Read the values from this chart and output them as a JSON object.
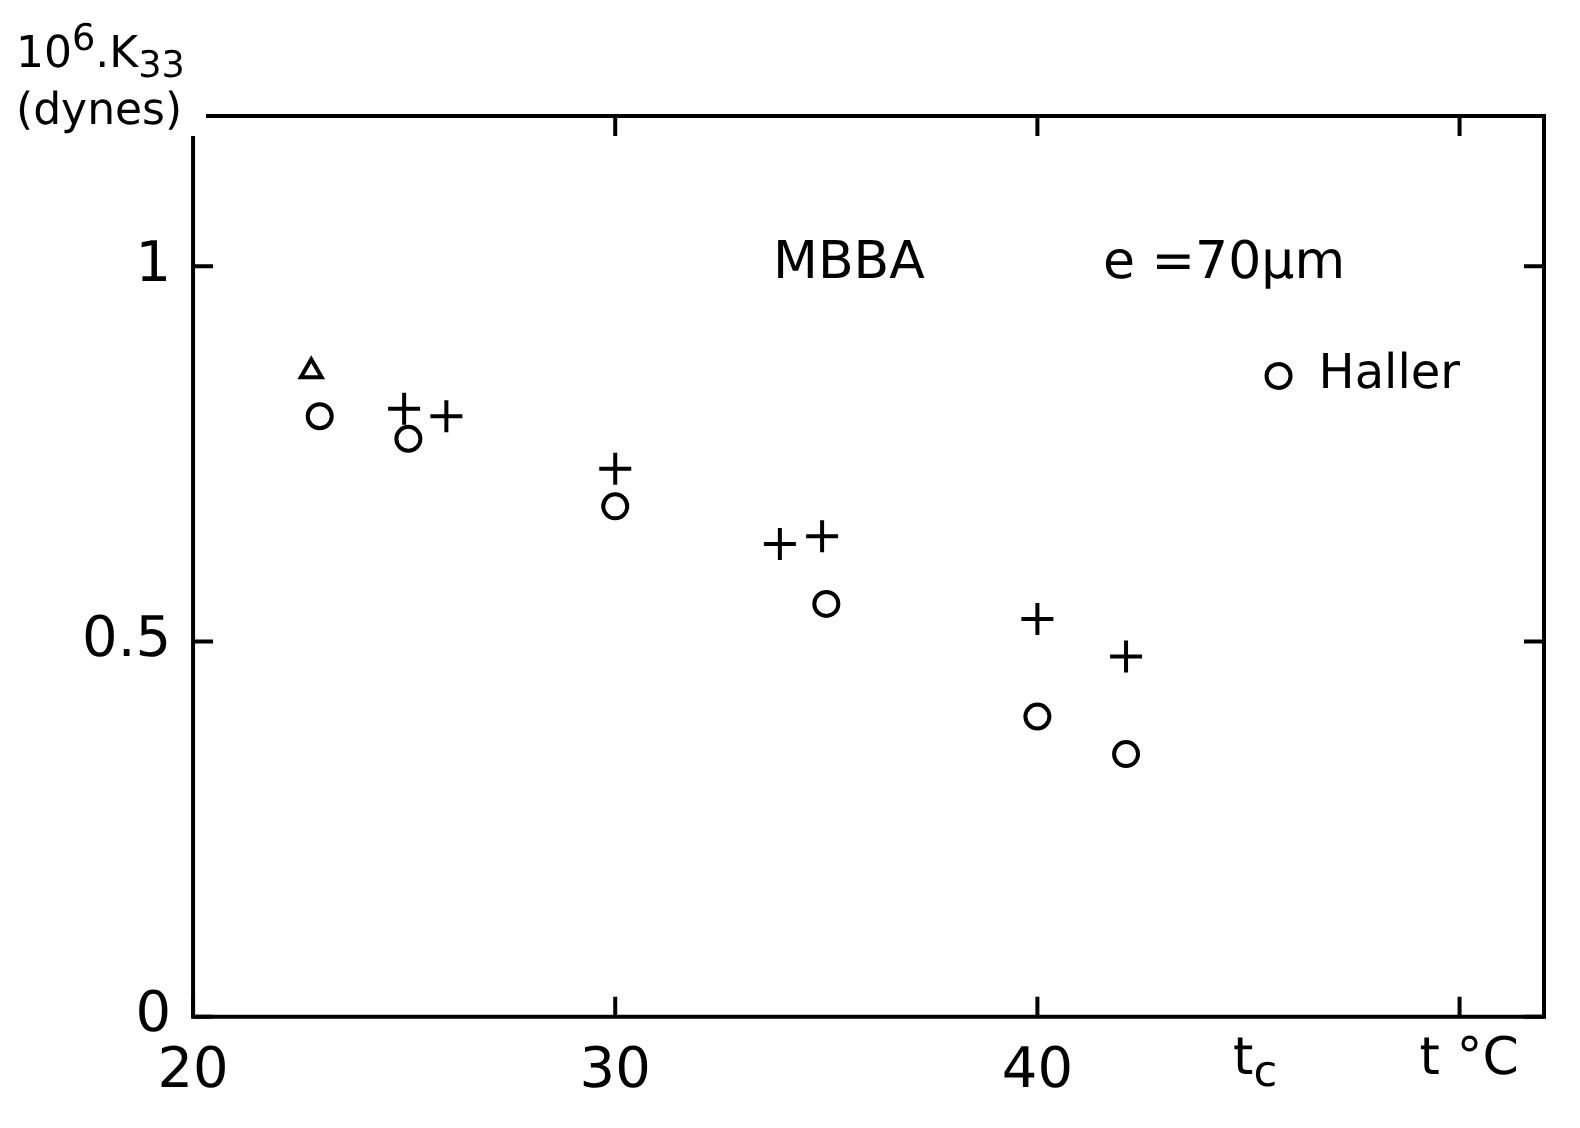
{
  "chart_data": {
    "type": "scatter",
    "xlabel": "t °C",
    "ylabel": "10$^{6}$.K$_{33}$ (dynes)",
    "xlim": [
      20,
      52
    ],
    "ylim": [
      0,
      1.2
    ],
    "xticks": [
      20,
      30,
      40,
      {
        "value": 50,
        "label": null
      }
    ],
    "yticks": [
      0,
      0.5,
      1
    ],
    "grid": false,
    "legend": "top right",
    "series": [
      {
        "name": "Haller",
        "color": "#000000",
        "marker": "circle",
        "x": [
          23.0,
          25.1,
          30.0,
          35.0,
          40.0,
          42.1
        ],
        "values": [
          0.8,
          0.77,
          0.68,
          0.55,
          0.4,
          0.35
        ]
      },
      {
        "color": "#000000",
        "marker": "cross",
        "x": [
          25.0,
          26.0,
          30.0,
          33.9,
          34.9,
          40.0,
          42.1
        ],
        "values": [
          0.81,
          0.8,
          0.73,
          0.63,
          0.64,
          0.53,
          0.48
        ]
      },
      {
        "color": "#000000",
        "marker": "triangle",
        "x": [
          22.8
        ],
        "values": [
          0.86
        ]
      }
    ],
    "annotations": [
      "MBBA",
      "e =70μm",
      "t$_{c}$"
    ]
  }
}
